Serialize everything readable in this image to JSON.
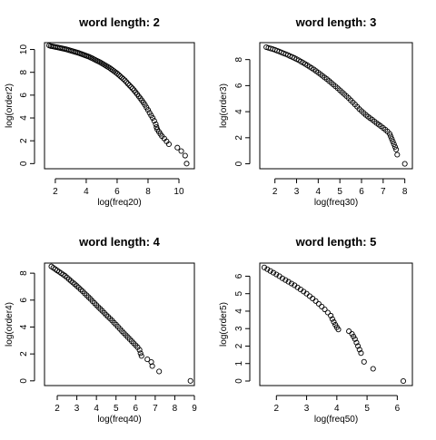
{
  "chart_data": [
    {
      "type": "scatter",
      "title": "word length: 2",
      "xlabel": "log(freq20)",
      "ylabel": "log(order2)",
      "xlim": [
        1.3,
        11.0
      ],
      "ylim": [
        -0.45,
        10.6
      ],
      "xticks": [
        2,
        4,
        6,
        8,
        10
      ],
      "yticks": [
        0,
        2,
        4,
        6,
        8,
        10
      ],
      "points": [
        [
          1.6,
          10.35
        ],
        [
          1.7,
          10.3
        ],
        [
          1.8,
          10.28
        ],
        [
          1.9,
          10.25
        ],
        [
          2.0,
          10.22
        ],
        [
          2.1,
          10.2
        ],
        [
          2.2,
          10.17
        ],
        [
          2.3,
          10.14
        ],
        [
          2.4,
          10.11
        ],
        [
          2.5,
          10.08
        ],
        [
          2.6,
          10.05
        ],
        [
          2.7,
          10.02
        ],
        [
          2.8,
          9.98
        ],
        [
          2.9,
          9.94
        ],
        [
          3.0,
          9.9
        ],
        [
          3.1,
          9.86
        ],
        [
          3.2,
          9.82
        ],
        [
          3.3,
          9.78
        ],
        [
          3.4,
          9.74
        ],
        [
          3.5,
          9.7
        ],
        [
          3.6,
          9.65
        ],
        [
          3.7,
          9.6
        ],
        [
          3.8,
          9.55
        ],
        [
          3.9,
          9.5
        ],
        [
          4.0,
          9.45
        ],
        [
          4.1,
          9.4
        ],
        [
          4.2,
          9.35
        ],
        [
          4.3,
          9.28
        ],
        [
          4.4,
          9.22
        ],
        [
          4.5,
          9.15
        ],
        [
          4.6,
          9.08
        ],
        [
          4.7,
          9.01
        ],
        [
          4.8,
          8.95
        ],
        [
          4.9,
          8.88
        ],
        [
          5.0,
          8.8
        ],
        [
          5.1,
          8.72
        ],
        [
          5.2,
          8.64
        ],
        [
          5.3,
          8.56
        ],
        [
          5.4,
          8.48
        ],
        [
          5.5,
          8.4
        ],
        [
          5.6,
          8.3
        ],
        [
          5.7,
          8.2
        ],
        [
          5.8,
          8.1
        ],
        [
          5.9,
          8.0
        ],
        [
          6.0,
          7.9
        ],
        [
          6.1,
          7.78
        ],
        [
          6.2,
          7.66
        ],
        [
          6.3,
          7.54
        ],
        [
          6.4,
          7.42
        ],
        [
          6.5,
          7.3
        ],
        [
          6.6,
          7.15
        ],
        [
          6.7,
          7.0
        ],
        [
          6.8,
          6.86
        ],
        [
          6.9,
          6.72
        ],
        [
          7.0,
          6.58
        ],
        [
          7.1,
          6.42
        ],
        [
          7.2,
          6.25
        ],
        [
          7.3,
          6.08
        ],
        [
          7.4,
          5.9
        ],
        [
          7.5,
          5.72
        ],
        [
          7.6,
          5.54
        ],
        [
          7.7,
          5.35
        ],
        [
          7.8,
          5.15
        ],
        [
          7.9,
          4.92
        ],
        [
          8.0,
          4.7
        ],
        [
          8.1,
          4.45
        ],
        [
          8.2,
          4.22
        ],
        [
          8.3,
          4.0
        ],
        [
          8.4,
          3.75
        ],
        [
          8.5,
          3.45
        ],
        [
          8.55,
          3.2
        ],
        [
          8.6,
          3.0
        ],
        [
          8.7,
          2.8
        ],
        [
          8.8,
          2.6
        ],
        [
          8.9,
          2.4
        ],
        [
          9.05,
          2.2
        ],
        [
          9.2,
          1.95
        ],
        [
          9.35,
          1.7
        ],
        [
          9.9,
          1.4
        ],
        [
          10.15,
          1.1
        ],
        [
          10.4,
          0.7
        ],
        [
          10.5,
          0.0
        ]
      ]
    },
    {
      "type": "scatter",
      "title": "word length: 3",
      "xlabel": "log(freq30)",
      "ylabel": "log(order3)",
      "xlim": [
        1.3,
        8.35
      ],
      "ylim": [
        -0.38,
        9.3
      ],
      "xticks": [
        2,
        3,
        4,
        5,
        6,
        7,
        8
      ],
      "yticks": [
        0,
        2,
        4,
        6,
        8
      ],
      "points": [
        [
          1.6,
          8.95
        ],
        [
          1.7,
          8.9
        ],
        [
          1.8,
          8.85
        ],
        [
          1.9,
          8.8
        ],
        [
          2.0,
          8.75
        ],
        [
          2.1,
          8.68
        ],
        [
          2.2,
          8.62
        ],
        [
          2.3,
          8.55
        ],
        [
          2.4,
          8.48
        ],
        [
          2.5,
          8.42
        ],
        [
          2.6,
          8.35
        ],
        [
          2.7,
          8.27
        ],
        [
          2.8,
          8.2
        ],
        [
          2.9,
          8.12
        ],
        [
          3.0,
          8.03
        ],
        [
          3.1,
          7.95
        ],
        [
          3.2,
          7.85
        ],
        [
          3.3,
          7.76
        ],
        [
          3.4,
          7.66
        ],
        [
          3.5,
          7.56
        ],
        [
          3.6,
          7.45
        ],
        [
          3.7,
          7.35
        ],
        [
          3.8,
          7.24
        ],
        [
          3.9,
          7.12
        ],
        [
          4.0,
          7.0
        ],
        [
          4.1,
          6.88
        ],
        [
          4.2,
          6.75
        ],
        [
          4.3,
          6.62
        ],
        [
          4.4,
          6.5
        ],
        [
          4.5,
          6.36
        ],
        [
          4.6,
          6.22
        ],
        [
          4.7,
          6.08
        ],
        [
          4.8,
          5.94
        ],
        [
          4.9,
          5.8
        ],
        [
          5.0,
          5.65
        ],
        [
          5.1,
          5.5
        ],
        [
          5.2,
          5.35
        ],
        [
          5.3,
          5.2
        ],
        [
          5.4,
          5.05
        ],
        [
          5.5,
          4.88
        ],
        [
          5.6,
          4.72
        ],
        [
          5.7,
          4.55
        ],
        [
          5.8,
          4.38
        ],
        [
          5.9,
          4.2
        ],
        [
          6.0,
          4.05
        ],
        [
          6.1,
          3.9
        ],
        [
          6.2,
          3.75
        ],
        [
          6.3,
          3.62
        ],
        [
          6.4,
          3.5
        ],
        [
          6.5,
          3.38
        ],
        [
          6.6,
          3.25
        ],
        [
          6.7,
          3.12
        ],
        [
          6.8,
          3.0
        ],
        [
          6.9,
          2.88
        ],
        [
          7.0,
          2.75
        ],
        [
          7.1,
          2.62
        ],
        [
          7.2,
          2.48
        ],
        [
          7.3,
          2.3
        ],
        [
          7.35,
          2.1
        ],
        [
          7.4,
          1.9
        ],
        [
          7.45,
          1.7
        ],
        [
          7.5,
          1.5
        ],
        [
          7.55,
          1.3
        ],
        [
          7.6,
          1.1
        ],
        [
          7.65,
          0.7
        ],
        [
          8.0,
          0.0
        ]
      ]
    },
    {
      "type": "scatter",
      "title": "word length: 4",
      "xlabel": "log(freq40)",
      "ylabel": "log(order4)",
      "xlim": [
        1.35,
        9.0
      ],
      "ylim": [
        -0.35,
        8.75
      ],
      "xticks": [
        2,
        3,
        4,
        5,
        6,
        7,
        8,
        9
      ],
      "yticks": [
        0,
        2,
        4,
        6,
        8
      ],
      "points": [
        [
          1.7,
          8.5
        ],
        [
          1.8,
          8.4
        ],
        [
          1.9,
          8.3
        ],
        [
          2.0,
          8.2
        ],
        [
          2.1,
          8.1
        ],
        [
          2.2,
          8.0
        ],
        [
          2.3,
          7.9
        ],
        [
          2.4,
          7.8
        ],
        [
          2.5,
          7.68
        ],
        [
          2.6,
          7.55
        ],
        [
          2.7,
          7.42
        ],
        [
          2.8,
          7.3
        ],
        [
          2.9,
          7.18
        ],
        [
          3.0,
          7.05
        ],
        [
          3.1,
          6.92
        ],
        [
          3.2,
          6.78
        ],
        [
          3.3,
          6.65
        ],
        [
          3.4,
          6.5
        ],
        [
          3.5,
          6.36
        ],
        [
          3.6,
          6.22
        ],
        [
          3.7,
          6.08
        ],
        [
          3.8,
          5.92
        ],
        [
          3.9,
          5.78
        ],
        [
          4.0,
          5.63
        ],
        [
          4.1,
          5.48
        ],
        [
          4.2,
          5.34
        ],
        [
          4.3,
          5.2
        ],
        [
          4.4,
          5.05
        ],
        [
          4.5,
          4.9
        ],
        [
          4.6,
          4.76
        ],
        [
          4.7,
          4.62
        ],
        [
          4.8,
          4.48
        ],
        [
          4.9,
          4.32
        ],
        [
          5.0,
          4.18
        ],
        [
          5.1,
          4.02
        ],
        [
          5.2,
          3.86
        ],
        [
          5.3,
          3.7
        ],
        [
          5.4,
          3.55
        ],
        [
          5.5,
          3.4
        ],
        [
          5.6,
          3.25
        ],
        [
          5.7,
          3.1
        ],
        [
          5.8,
          2.95
        ],
        [
          5.9,
          2.8
        ],
        [
          6.0,
          2.65
        ],
        [
          6.1,
          2.5
        ],
        [
          6.2,
          2.3
        ],
        [
          6.25,
          2.05
        ],
        [
          6.3,
          1.85
        ],
        [
          6.6,
          1.6
        ],
        [
          6.8,
          1.4
        ],
        [
          6.85,
          1.1
        ],
        [
          7.2,
          0.7
        ],
        [
          8.8,
          0.0
        ]
      ]
    },
    {
      "type": "scatter",
      "title": "word length: 5",
      "xlabel": "log(freq50)",
      "ylabel": "log(order5)",
      "xlim": [
        1.45,
        6.5
      ],
      "ylim": [
        -0.26,
        6.75
      ],
      "xticks": [
        2,
        3,
        4,
        5,
        6
      ],
      "yticks": [
        0,
        1,
        2,
        3,
        4,
        5,
        6
      ],
      "points": [
        [
          1.6,
          6.5
        ],
        [
          1.7,
          6.4
        ],
        [
          1.8,
          6.3
        ],
        [
          1.9,
          6.2
        ],
        [
          2.0,
          6.1
        ],
        [
          2.1,
          6.0
        ],
        [
          2.2,
          5.88
        ],
        [
          2.3,
          5.78
        ],
        [
          2.4,
          5.68
        ],
        [
          2.5,
          5.58
        ],
        [
          2.6,
          5.48
        ],
        [
          2.7,
          5.36
        ],
        [
          2.8,
          5.24
        ],
        [
          2.9,
          5.12
        ],
        [
          3.0,
          5.0
        ],
        [
          3.1,
          4.86
        ],
        [
          3.2,
          4.72
        ],
        [
          3.3,
          4.58
        ],
        [
          3.4,
          4.42
        ],
        [
          3.5,
          4.26
        ],
        [
          3.6,
          4.1
        ],
        [
          3.7,
          3.92
        ],
        [
          3.8,
          3.74
        ],
        [
          3.85,
          3.55
        ],
        [
          3.9,
          3.38
        ],
        [
          3.95,
          3.22
        ],
        [
          4.0,
          3.08
        ],
        [
          4.05,
          2.95
        ],
        [
          4.4,
          2.85
        ],
        [
          4.5,
          2.7
        ],
        [
          4.55,
          2.55
        ],
        [
          4.6,
          2.4
        ],
        [
          4.65,
          2.2
        ],
        [
          4.7,
          2.0
        ],
        [
          4.75,
          1.8
        ],
        [
          4.8,
          1.6
        ],
        [
          4.9,
          1.1
        ],
        [
          5.2,
          0.7
        ],
        [
          6.2,
          0.0
        ]
      ]
    }
  ]
}
